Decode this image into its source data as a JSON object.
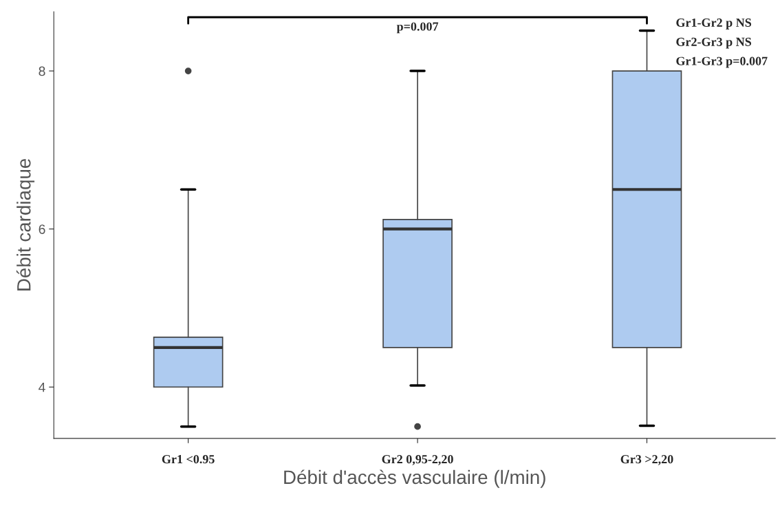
{
  "chart_data": {
    "type": "box",
    "xlabel": "Débit d'accès vasculaire (l/min)",
    "ylabel": "Débit cardiaque",
    "categories": [
      "Gr1 <0.95",
      "Gr2 0,95-2,20",
      "Gr3 >2,20"
    ],
    "boxes": [
      {
        "low": 3.5,
        "q1": 4,
        "median": 4.5,
        "q3": 4.63,
        "high": 6.5,
        "outliers": [
          8
        ]
      },
      {
        "low": 4.02,
        "q1": 4.5,
        "median": 6,
        "q3": 6.12,
        "high": 8,
        "outliers": [
          3.5
        ]
      },
      {
        "low": 3.51,
        "q1": 4.5,
        "median": 6.5,
        "q3": 8,
        "high": 8.51
      }
    ],
    "color": "#aecbf0",
    "ylim": [
      3.35,
      8.75
    ],
    "yticks": [
      4,
      6,
      8
    ],
    "grid": false,
    "annotations": [
      "p=0.007",
      "Gr1-Gr2 p NS",
      "Gr2-Gr3 p NS",
      "Gr1-Gr3 p=0.007"
    ]
  }
}
